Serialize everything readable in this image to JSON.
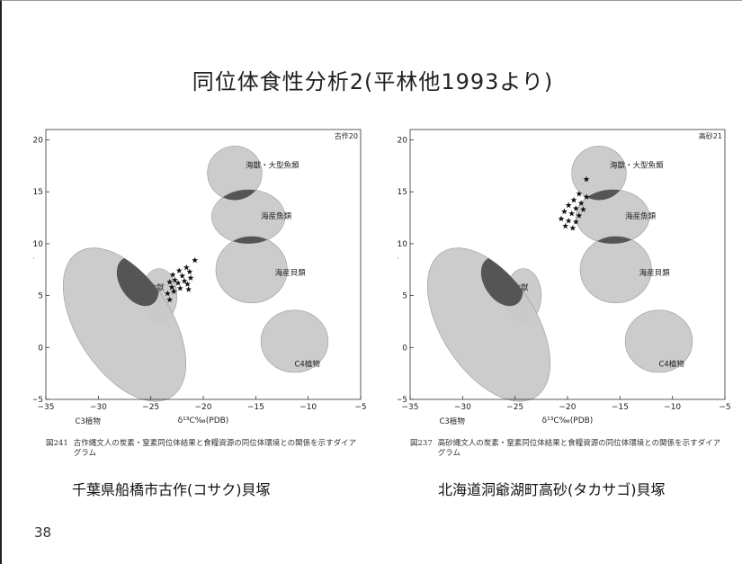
{
  "slide": {
    "title": "同位体食性分析2(平林他1993より)",
    "page_number": "38",
    "site_left": "千葉県船橋市古作(コサク)貝塚",
    "site_right": "北海道洞爺湖町高砂(タカサゴ)貝塚"
  },
  "colors": {
    "region_fill": "#c9c9c9",
    "region_stroke": "#9a9a9a",
    "overlap_fill": "#555555",
    "star": "#111111"
  },
  "chart_data": [
    {
      "type": "scatter",
      "site_code": "古作20",
      "xlabel": "δ¹³C‰(PDB)",
      "ylabel": "δ¹⁵N‰(AIR)",
      "xlim": [
        -35,
        -5
      ],
      "ylim": [
        -5,
        21
      ],
      "x_ticks": [
        -35,
        -30,
        -25,
        -20,
        -15,
        -10,
        -5
      ],
      "y_ticks": [
        -5,
        0,
        5,
        10,
        15,
        20
      ],
      "caption_no": "図241",
      "caption": "古作縄文人の炭素・窒素同位体結果と食糧資源の同位体環境との関係を示すダイアグラム",
      "regions": [
        {
          "label": "海獣・大型魚類",
          "center": [
            -17,
            16.8
          ],
          "r": [
            2.6,
            2.6
          ]
        },
        {
          "label": "海産魚類",
          "center": [
            -15.7,
            12.6
          ],
          "r": [
            3.5,
            2.6
          ]
        },
        {
          "label": "海産貝類",
          "center": [
            -15.4,
            7.5
          ],
          "r": [
            3.4,
            3.2
          ]
        },
        {
          "label": "草食獣",
          "center": [
            -24.2,
            5.0
          ],
          "r": [
            1.7,
            2.6
          ]
        },
        {
          "label": "C3植物",
          "center": [
            -27.5,
            2.2
          ],
          "r": [
            4.5,
            8.3
          ],
          "rot": -33
        },
        {
          "label": "C4植物",
          "center": [
            -11.3,
            0.6
          ],
          "r": [
            3.2,
            3.0
          ]
        }
      ],
      "points": [
        [
          -20.8,
          8.4
        ],
        [
          -21.6,
          7.7
        ],
        [
          -22.3,
          7.4
        ],
        [
          -21.3,
          7.3
        ],
        [
          -22.9,
          7.0
        ],
        [
          -22.0,
          6.9
        ],
        [
          -21.2,
          6.7
        ],
        [
          -22.7,
          6.5
        ],
        [
          -21.8,
          6.4
        ],
        [
          -23.2,
          6.3
        ],
        [
          -22.4,
          6.2
        ],
        [
          -21.5,
          6.1
        ],
        [
          -23.0,
          5.8
        ],
        [
          -22.2,
          5.7
        ],
        [
          -21.4,
          5.6
        ],
        [
          -22.8,
          5.4
        ],
        [
          -23.4,
          5.2
        ],
        [
          -23.2,
          4.6
        ]
      ]
    },
    {
      "type": "scatter",
      "site_code": "高砂21",
      "xlabel": "δ¹³C‰(PDB)",
      "ylabel": "δ¹⁵N‰(AIR)",
      "xlim": [
        -35,
        -5
      ],
      "ylim": [
        -5,
        21
      ],
      "x_ticks": [
        -35,
        -30,
        -25,
        -20,
        -15,
        -10,
        -5
      ],
      "y_ticks": [
        -5,
        0,
        5,
        10,
        15,
        20
      ],
      "caption_no": "図237",
      "caption": "高砂縄文人の炭素・窒素同位体結果と食糧資源の同位体環境との関係を示すダイアグラム",
      "regions": [
        {
          "label": "海獣・大型魚類",
          "center": [
            -17,
            16.8
          ],
          "r": [
            2.6,
            2.6
          ]
        },
        {
          "label": "海産魚類",
          "center": [
            -15.7,
            12.6
          ],
          "r": [
            3.5,
            2.6
          ]
        },
        {
          "label": "海産貝類",
          "center": [
            -15.4,
            7.5
          ],
          "r": [
            3.4,
            3.2
          ]
        },
        {
          "label": "草食獣",
          "center": [
            -24.2,
            5.0
          ],
          "r": [
            1.7,
            2.6
          ]
        },
        {
          "label": "C3植物",
          "center": [
            -27.5,
            2.2
          ],
          "r": [
            4.5,
            8.3
          ],
          "rot": -33
        },
        {
          "label": "C4植物",
          "center": [
            -11.3,
            0.6
          ],
          "r": [
            3.2,
            3.0
          ]
        }
      ],
      "points": [
        [
          -18.2,
          16.2
        ],
        [
          -18.9,
          14.8
        ],
        [
          -18.2,
          14.5
        ],
        [
          -19.4,
          14.2
        ],
        [
          -18.7,
          13.9
        ],
        [
          -19.9,
          13.7
        ],
        [
          -19.2,
          13.4
        ],
        [
          -18.5,
          13.3
        ],
        [
          -20.3,
          13.1
        ],
        [
          -19.6,
          12.9
        ],
        [
          -18.9,
          12.7
        ],
        [
          -20.6,
          12.4
        ],
        [
          -19.9,
          12.2
        ],
        [
          -19.2,
          12.1
        ],
        [
          -20.2,
          11.7
        ],
        [
          -19.5,
          11.5
        ]
      ]
    }
  ]
}
